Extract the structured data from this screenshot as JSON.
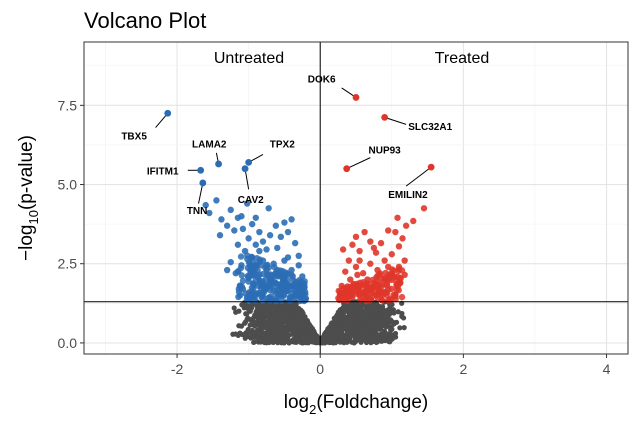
{
  "chart_data": {
    "type": "scatter",
    "title": "Volcano Plot",
    "xlabel": {
      "base": "log",
      "sub": "2",
      "rest": "(Foldchange)"
    },
    "ylabel": {
      "pre": "−log",
      "sub": "10",
      "rest": "(p-value)"
    },
    "xlim": [
      -3.3,
      4.3
    ],
    "ylim": [
      -0.35,
      9.5
    ],
    "x_ticks": [
      -2,
      0,
      2,
      4
    ],
    "y_ticks": [
      0.0,
      2.5,
      5.0,
      7.5
    ],
    "x_tick_labels": [
      "-2",
      "0",
      "2",
      "4"
    ],
    "y_tick_labels": [
      "0.0",
      "2.5",
      "5.0",
      "7.5"
    ],
    "grid": true,
    "threshold_y": 1.3,
    "threshold_x": 0,
    "annotations": [
      "Untreated",
      "Treated"
    ],
    "colors": {
      "down": "#2b6db5",
      "up": "#e0362a",
      "ns": "#4d4d4d"
    },
    "labeled_genes": [
      {
        "gene": "TBX5",
        "x": -2.13,
        "y": 7.25,
        "group": "down"
      },
      {
        "gene": "LAMA2",
        "x": -1.42,
        "y": 5.65,
        "group": "down"
      },
      {
        "gene": "TPX2",
        "x": -1.0,
        "y": 5.7,
        "group": "down"
      },
      {
        "gene": "IFITM1",
        "x": -1.67,
        "y": 5.45,
        "group": "down"
      },
      {
        "gene": "CAV2",
        "x": -1.05,
        "y": 5.5,
        "group": "down"
      },
      {
        "gene": "TNN",
        "x": -1.64,
        "y": 5.05,
        "group": "down"
      },
      {
        "gene": "DOK6",
        "x": 0.5,
        "y": 7.75,
        "group": "up"
      },
      {
        "gene": "SLC32A1",
        "x": 0.9,
        "y": 7.12,
        "group": "up"
      },
      {
        "gene": "NUP93",
        "x": 0.37,
        "y": 5.5,
        "group": "up"
      },
      {
        "gene": "EMILIN2",
        "x": 1.55,
        "y": 5.55,
        "group": "up"
      }
    ],
    "scatter_points": {
      "down": [
        [
          -1.55,
          4.1
        ],
        [
          -1.6,
          4.35
        ],
        [
          -1.45,
          4.5
        ],
        [
          -1.38,
          3.9
        ],
        [
          -1.25,
          4.2
        ],
        [
          -1.3,
          3.7
        ],
        [
          -1.15,
          3.95
        ],
        [
          -1.2,
          3.55
        ],
        [
          -1.08,
          3.6
        ],
        [
          -1.1,
          4.0
        ],
        [
          -1.0,
          3.3
        ],
        [
          -0.95,
          3.75
        ],
        [
          -0.85,
          3.5
        ],
        [
          -0.9,
          3.1
        ],
        [
          -0.8,
          3.2
        ],
        [
          -0.75,
          2.95
        ],
        [
          -0.7,
          3.4
        ],
        [
          -0.6,
          3.0
        ],
        [
          -0.55,
          3.35
        ],
        [
          -0.45,
          3.5
        ],
        [
          -0.35,
          3.15
        ],
        [
          -0.3,
          2.75
        ],
        [
          -0.5,
          2.6
        ],
        [
          -0.65,
          2.5
        ],
        [
          -0.8,
          2.6
        ],
        [
          -0.95,
          2.7
        ],
        [
          -1.05,
          2.9
        ],
        [
          -1.15,
          3.1
        ],
        [
          -1.25,
          2.55
        ],
        [
          -1.3,
          2.3
        ],
        [
          -1.18,
          2.2
        ],
        [
          -1.0,
          2.05
        ],
        [
          -0.85,
          2.15
        ],
        [
          -0.7,
          2.0
        ],
        [
          -0.55,
          2.1
        ],
        [
          -0.4,
          2.3
        ],
        [
          -0.3,
          2.45
        ],
        [
          -0.25,
          2.1
        ],
        [
          -0.35,
          1.85
        ],
        [
          -0.5,
          1.75
        ],
        [
          -0.65,
          1.65
        ],
        [
          -0.8,
          1.8
        ],
        [
          -0.95,
          1.6
        ],
        [
          -1.08,
          1.7
        ],
        [
          -1.12,
          1.5
        ],
        [
          -0.98,
          1.4
        ],
        [
          -0.82,
          1.45
        ],
        [
          -0.68,
          1.38
        ],
        [
          -0.55,
          1.5
        ],
        [
          -0.42,
          1.45
        ],
        [
          -0.3,
          1.55
        ],
        [
          -0.22,
          1.75
        ],
        [
          -0.2,
          1.4
        ],
        [
          -0.9,
          2.4
        ],
        [
          -0.6,
          2.3
        ],
        [
          -0.45,
          2.7
        ],
        [
          -1.4,
          3.4
        ],
        [
          -0.72,
          4.25
        ],
        [
          -0.4,
          3.9
        ],
        [
          -1.02,
          4.4
        ],
        [
          -0.5,
          3.8
        ],
        [
          -0.9,
          3.95
        ],
        [
          -0.62,
          3.7
        ],
        [
          -0.85,
          2.9
        ],
        [
          -1.1,
          2.45
        ],
        [
          -0.75,
          2.3
        ]
      ],
      "up": [
        [
          0.45,
          3.1
        ],
        [
          0.5,
          3.35
        ],
        [
          0.55,
          2.9
        ],
        [
          0.62,
          3.5
        ],
        [
          0.7,
          3.2
        ],
        [
          0.78,
          2.85
        ],
        [
          0.85,
          3.15
        ],
        [
          0.9,
          2.6
        ],
        [
          1.0,
          2.8
        ],
        [
          1.1,
          3.05
        ],
        [
          1.15,
          3.3
        ],
        [
          1.2,
          3.7
        ],
        [
          1.3,
          3.85
        ],
        [
          1.45,
          4.25
        ],
        [
          1.05,
          3.5
        ],
        [
          0.95,
          3.55
        ],
        [
          0.4,
          2.6
        ],
        [
          0.35,
          2.25
        ],
        [
          0.42,
          2.0
        ],
        [
          0.5,
          2.4
        ],
        [
          0.6,
          2.2
        ],
        [
          0.7,
          2.5
        ],
        [
          0.8,
          2.3
        ],
        [
          0.9,
          2.05
        ],
        [
          1.0,
          2.2
        ],
        [
          1.1,
          2.4
        ],
        [
          1.18,
          2.6
        ],
        [
          0.3,
          1.8
        ],
        [
          0.28,
          1.55
        ],
        [
          0.38,
          1.65
        ],
        [
          0.5,
          1.8
        ],
        [
          0.6,
          1.6
        ],
        [
          0.72,
          1.75
        ],
        [
          0.85,
          1.55
        ],
        [
          0.95,
          1.7
        ],
        [
          1.05,
          1.5
        ],
        [
          1.12,
          1.9
        ],
        [
          0.65,
          1.45
        ],
        [
          0.45,
          1.45
        ],
        [
          0.8,
          1.95
        ],
        [
          0.55,
          2.6
        ],
        [
          0.75,
          3.0
        ],
        [
          0.95,
          2.4
        ],
        [
          1.08,
          3.95
        ],
        [
          0.32,
          2.95
        ],
        [
          0.66,
          2.0
        ],
        [
          1.18,
          2.15
        ],
        [
          0.52,
          2.15
        ]
      ]
    }
  }
}
